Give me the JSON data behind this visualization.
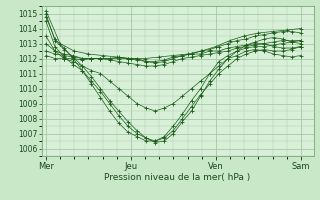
{
  "xlabel": "Pression niveau de la mer( hPa )",
  "day_labels": [
    "Mer",
    "Jeu",
    "Ven",
    "Sam"
  ],
  "ylim": [
    1005.5,
    1015.5
  ],
  "yticks": [
    1006,
    1007,
    1008,
    1009,
    1010,
    1011,
    1012,
    1013,
    1014,
    1015
  ],
  "bg_color": "#c8e8c8",
  "plot_bg_color": "#d8f0d8",
  "grid_color": "#a8c8a8",
  "line_color": "#1a5c1a",
  "series": [
    [
      1015.2,
      1013.0,
      1012.5,
      1012.3,
      1012.2,
      1012.1,
      1012.0,
      1012.0,
      1012.1,
      1012.2,
      1012.3,
      1012.5,
      1012.8,
      1013.2,
      1013.5,
      1013.7,
      1013.8,
      1013.9,
      1014.0
    ],
    [
      1015.0,
      1013.2,
      1012.6,
      1012.1,
      1011.5,
      1010.8,
      1010.0,
      1009.2,
      1008.5,
      1007.8,
      1007.2,
      1006.7,
      1006.4,
      1006.5,
      1007.0,
      1007.8,
      1008.5,
      1009.5,
      1010.5,
      1011.3,
      1012.0,
      1012.5,
      1012.9,
      1013.1,
      1013.3,
      1013.4,
      1013.3,
      1013.1,
      1013.0
    ],
    [
      1014.8,
      1013.3,
      1012.7,
      1012.0,
      1011.2,
      1010.3,
      1009.4,
      1008.5,
      1007.7,
      1007.1,
      1006.8,
      1006.5,
      1006.5,
      1006.8,
      1007.5,
      1008.3,
      1009.2,
      1010.0,
      1011.0,
      1011.8,
      1012.2,
      1012.5,
      1012.7,
      1012.8,
      1012.8,
      1012.9,
      1013.0,
      1013.1,
      1013.2
    ],
    [
      1014.5,
      1012.8,
      1012.1,
      1011.6,
      1011.2,
      1010.5,
      1009.8,
      1009.0,
      1008.2,
      1007.5,
      1007.0,
      1006.7,
      1006.5,
      1006.7,
      1007.2,
      1008.0,
      1008.8,
      1009.6,
      1010.3,
      1011.0,
      1011.5,
      1012.0,
      1012.3,
      1012.5,
      1012.6,
      1012.5,
      1012.5,
      1012.6,
      1012.8
    ],
    [
      1013.5,
      1012.5,
      1012.0,
      1011.8,
      1011.5,
      1011.2,
      1011.0,
      1010.5,
      1010.0,
      1009.5,
      1009.0,
      1008.7,
      1008.5,
      1008.7,
      1009.0,
      1009.5,
      1010.0,
      1010.5,
      1011.0,
      1011.5,
      1012.0,
      1012.2,
      1012.5,
      1012.6,
      1012.5,
      1012.3,
      1012.2,
      1012.1,
      1012.2
    ],
    [
      1013.0,
      1012.5,
      1012.3,
      1012.2,
      1012.0,
      1012.0,
      1012.0,
      1012.0,
      1012.1,
      1012.0,
      1012.0,
      1011.8,
      1011.7,
      1011.8,
      1012.0,
      1012.2,
      1012.3,
      1012.3,
      1012.5,
      1012.5,
      1012.7,
      1012.8,
      1012.9,
      1013.0,
      1013.0,
      1012.8,
      1012.7,
      1012.7,
      1012.8
    ],
    [
      1012.5,
      1012.3,
      1012.2,
      1012.1,
      1012.0,
      1012.0,
      1012.0,
      1011.9,
      1011.8,
      1011.7,
      1011.6,
      1011.5,
      1011.5,
      1011.6,
      1011.8,
      1012.0,
      1012.1,
      1012.2,
      1012.3,
      1012.4,
      1012.5,
      1012.7,
      1012.8,
      1012.9,
      1013.0,
      1013.1,
      1013.2,
      1013.2,
      1013.2
    ],
    [
      1012.2,
      1012.0,
      1012.0,
      1012.0,
      1011.9,
      1012.0,
      1012.0,
      1012.0,
      1012.0,
      1012.0,
      1011.9,
      1011.8,
      1011.8,
      1011.9,
      1012.1,
      1012.2,
      1012.3,
      1012.5,
      1012.6,
      1012.8,
      1013.0,
      1013.2,
      1013.3,
      1013.5,
      1013.6,
      1013.7,
      1013.8,
      1013.8,
      1013.7
    ]
  ]
}
